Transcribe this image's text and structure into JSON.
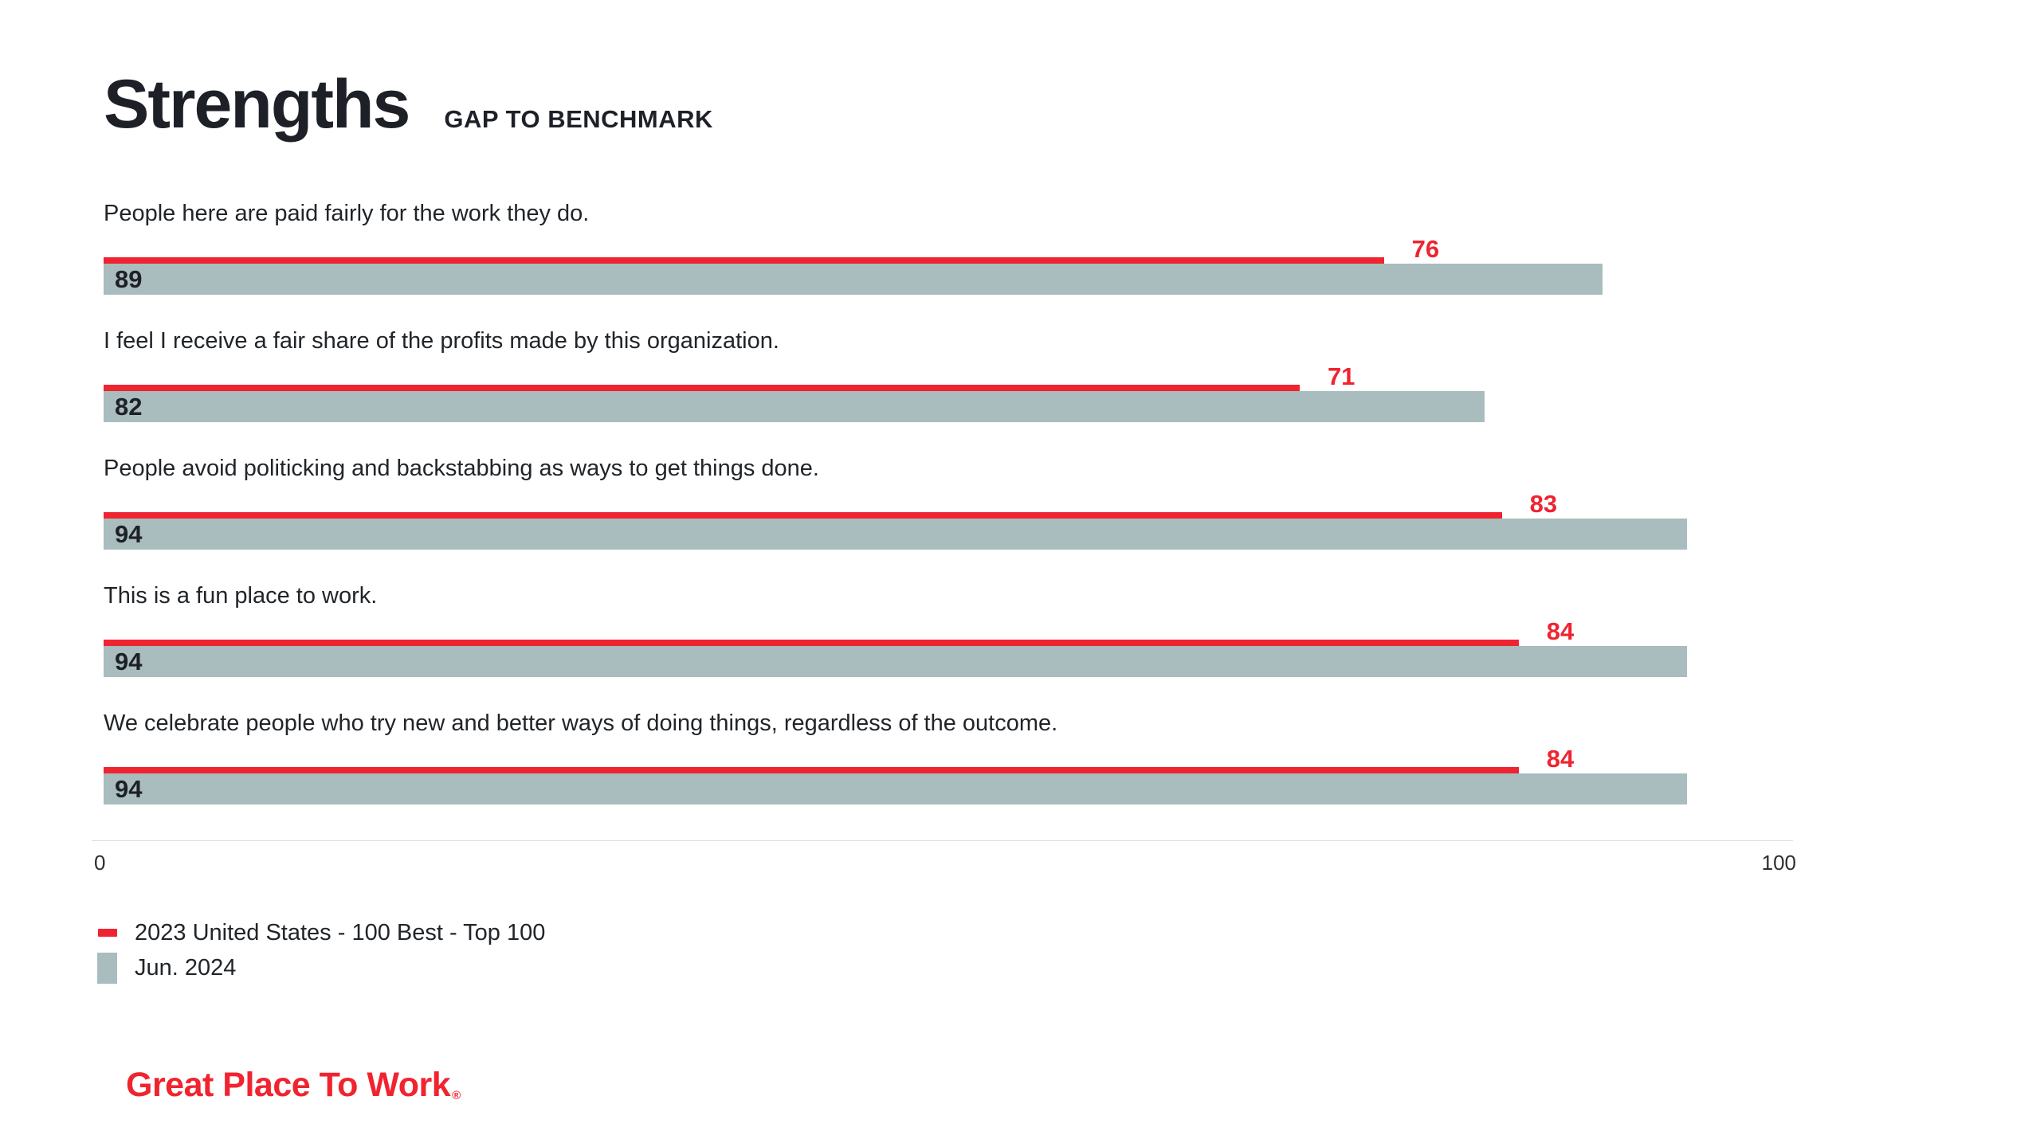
{
  "header": {
    "title": "Strengths",
    "subtitle": "GAP TO BENCHMARK"
  },
  "chart_data": {
    "type": "bar",
    "orientation": "horizontal",
    "title": "Strengths",
    "subtitle": "GAP TO BENCHMARK",
    "categories": [
      "People here are paid fairly for the work they do.",
      "I feel I receive a fair share of the profits made by this organization.",
      "People avoid politicking and backstabbing as ways to get things done.",
      "This is a fun place to work.",
      "We celebrate people who try new and better ways of doing things, regardless of the outcome."
    ],
    "series": [
      {
        "name": "2023 United States - 100 Best - Top 100",
        "style": "line",
        "color": "#EE2430",
        "values": [
          76,
          71,
          83,
          84,
          84
        ]
      },
      {
        "name": "Jun. 2024",
        "style": "bar",
        "color": "#A9BCBE",
        "values": [
          89,
          82,
          94,
          94,
          94
        ]
      }
    ],
    "xlim": [
      0,
      100
    ],
    "axis_ticks": [
      "0",
      "100"
    ],
    "grid": false,
    "legend_position": "bottom-left",
    "value_labels": "shown"
  },
  "axis": {
    "min_label": "0",
    "max_label": "100"
  },
  "legend": {
    "items": [
      {
        "label": "2023 United States - 100 Best - Top 100",
        "swatch": "red-dash",
        "color": "#EE2430"
      },
      {
        "label": "Jun. 2024",
        "swatch": "gray-square",
        "color": "#A9BCBE"
      }
    ]
  },
  "footer": {
    "logo_text": "Great Place To Work",
    "registered_mark": "®"
  },
  "colors": {
    "accent_red": "#EE2430",
    "bar_gray": "#A9BCBE",
    "ink": "#1D2127",
    "text": "#212529",
    "axis_line": "#DCDCDC",
    "axis_text": "#2E2E2E",
    "logo_red": "#F0242F",
    "background": "#FFFFFF"
  }
}
